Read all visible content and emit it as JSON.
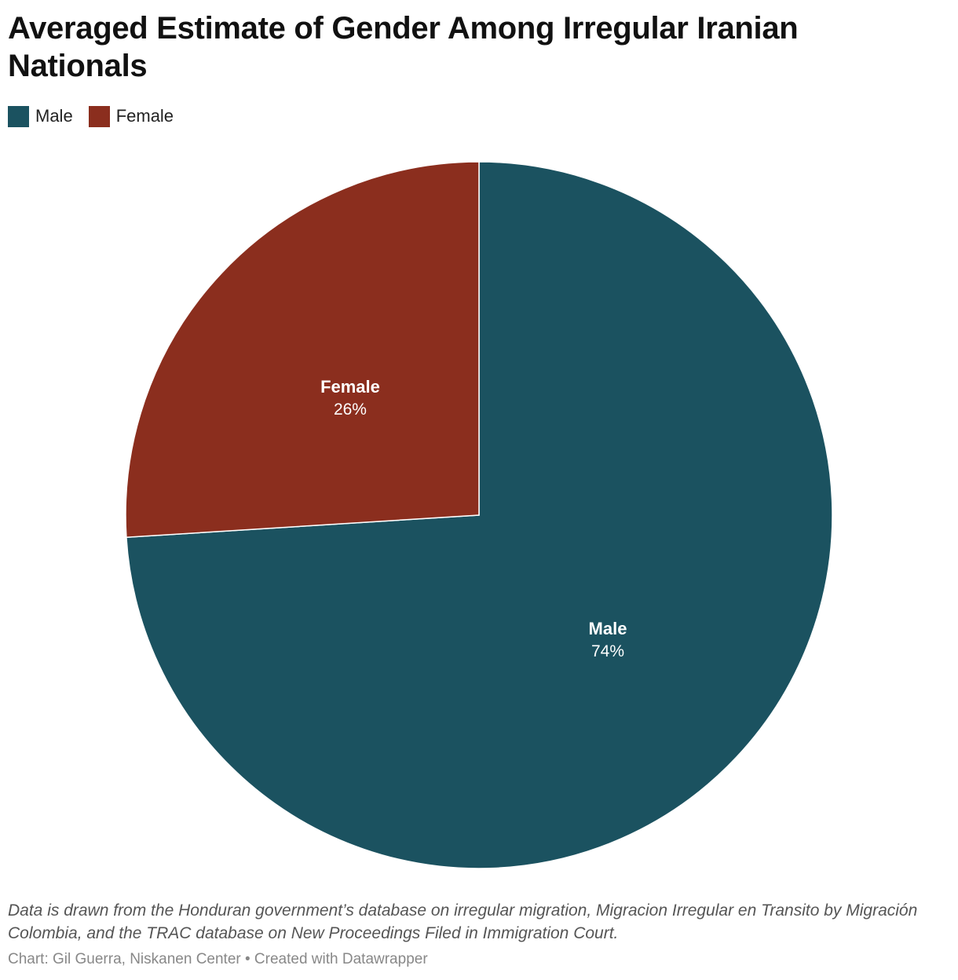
{
  "title": "Averaged Estimate of Gender Among Irregular Iranian Nationals",
  "legend": [
    {
      "label": "Male",
      "color": "#1b5260"
    },
    {
      "label": "Female",
      "color": "#8b2e1e"
    }
  ],
  "chart_data": {
    "type": "pie",
    "title": "Averaged Estimate of Gender Among Irregular Iranian Nationals",
    "categories": [
      "Male",
      "Female"
    ],
    "values": [
      74,
      26
    ],
    "value_labels": [
      "74%",
      "26%"
    ],
    "colors": [
      "#1b5260",
      "#8b2e1e"
    ],
    "legend_position": "top-left"
  },
  "notes": "Data is drawn from the Honduran government’s database on irregular migration, Migracion Irregular en Transito by Migración Colombia, and the TRAC database on New Proceedings Filed in Immigration Court.",
  "byline": "Chart: Gil Guerra, Niskanen Center • Created with Datawrapper"
}
